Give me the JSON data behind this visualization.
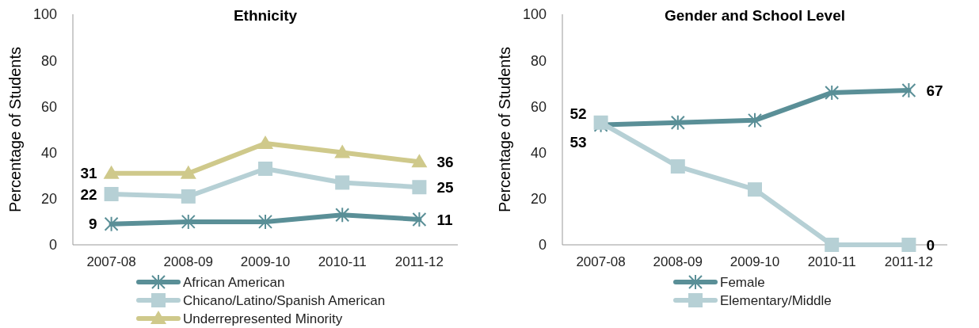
{
  "chart_data": [
    {
      "type": "line",
      "title": "Ethnicity",
      "ylabel": "Percentage of Students",
      "categories": [
        "2007-08",
        "2008-09",
        "2009-10",
        "2010-11",
        "2011-12"
      ],
      "ylim": [
        0,
        100
      ],
      "yticks": [
        0,
        20,
        40,
        60,
        80,
        100
      ],
      "grid": false,
      "legend": "bottom",
      "series": [
        {
          "name": "African American",
          "color": "#5a8f97",
          "marker": "cross",
          "values": [
            9,
            10,
            10,
            13,
            11
          ],
          "value_labels": [
            "9",
            null,
            null,
            null,
            "11"
          ]
        },
        {
          "name": "Chicano/Latino/Spanish American",
          "color": "#b6d0d5",
          "marker": "square",
          "values": [
            22,
            21,
            33,
            27,
            25
          ],
          "value_labels": [
            "22",
            null,
            null,
            null,
            "25"
          ]
        },
        {
          "name": "Underrepresented Minority",
          "color": "#cfc98b",
          "marker": "triangle",
          "values": [
            31,
            31,
            44,
            40,
            36
          ],
          "value_labels": [
            "31",
            null,
            null,
            null,
            "36"
          ]
        }
      ]
    },
    {
      "type": "line",
      "title": "Gender and School Level",
      "ylabel": "Percentage of Students",
      "categories": [
        "2007-08",
        "2008-09",
        "2009-10",
        "2010-11",
        "2011-12"
      ],
      "ylim": [
        0,
        100
      ],
      "yticks": [
        0,
        20,
        40,
        60,
        80,
        100
      ],
      "grid": false,
      "legend": "bottom",
      "series": [
        {
          "name": "Female",
          "color": "#5a8f97",
          "marker": "cross",
          "values": [
            52,
            53,
            54,
            66,
            67
          ],
          "value_labels": [
            "52",
            null,
            null,
            null,
            "67"
          ]
        },
        {
          "name": "Elementary/Middle",
          "color": "#b6d0d5",
          "marker": "square",
          "values": [
            53,
            34,
            24,
            0,
            0
          ],
          "value_labels": [
            "53",
            null,
            null,
            null,
            "0"
          ]
        }
      ]
    }
  ]
}
